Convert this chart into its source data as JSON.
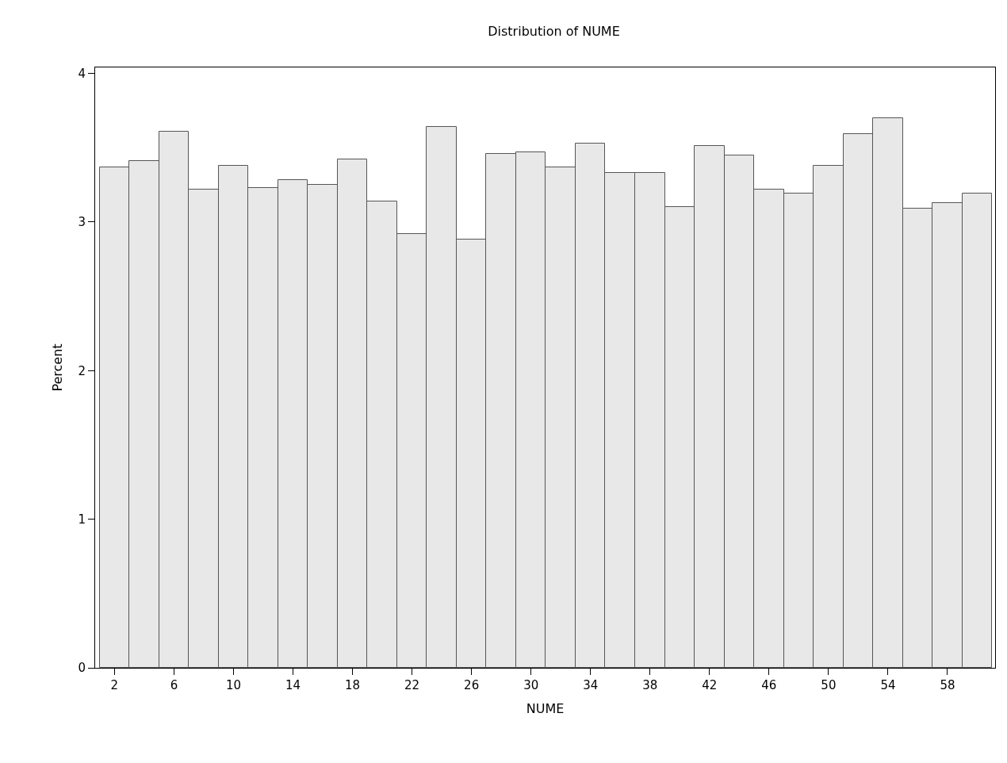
{
  "chart_data": {
    "type": "histogram",
    "title": "Distribution of NUME",
    "xlabel": "NUME",
    "ylabel": "Percent",
    "bins": [
      1,
      3,
      5,
      7,
      9,
      11,
      13,
      15,
      17,
      19,
      21,
      23,
      25,
      27,
      29,
      31,
      33,
      35,
      37,
      39,
      41,
      43,
      45,
      47,
      49,
      51,
      53,
      55,
      57,
      59,
      61
    ],
    "values": [
      3.37,
      3.41,
      3.61,
      3.22,
      3.38,
      3.23,
      3.28,
      3.25,
      3.42,
      3.14,
      2.92,
      3.64,
      2.88,
      3.46,
      3.47,
      3.37,
      3.53,
      3.33,
      3.33,
      3.1,
      3.51,
      3.45,
      3.22,
      3.19,
      3.38,
      3.59,
      3.7,
      3.09,
      3.13,
      3.19
    ],
    "color": "#e8e8e8",
    "xlim": [
      0.7,
      61.2
    ],
    "xticks": [
      2,
      6,
      10,
      14,
      18,
      22,
      26,
      30,
      34,
      38,
      42,
      46,
      50,
      54,
      58
    ],
    "ylim": [
      0,
      4.04
    ],
    "yticks": [
      0,
      1,
      2,
      3,
      4
    ]
  }
}
